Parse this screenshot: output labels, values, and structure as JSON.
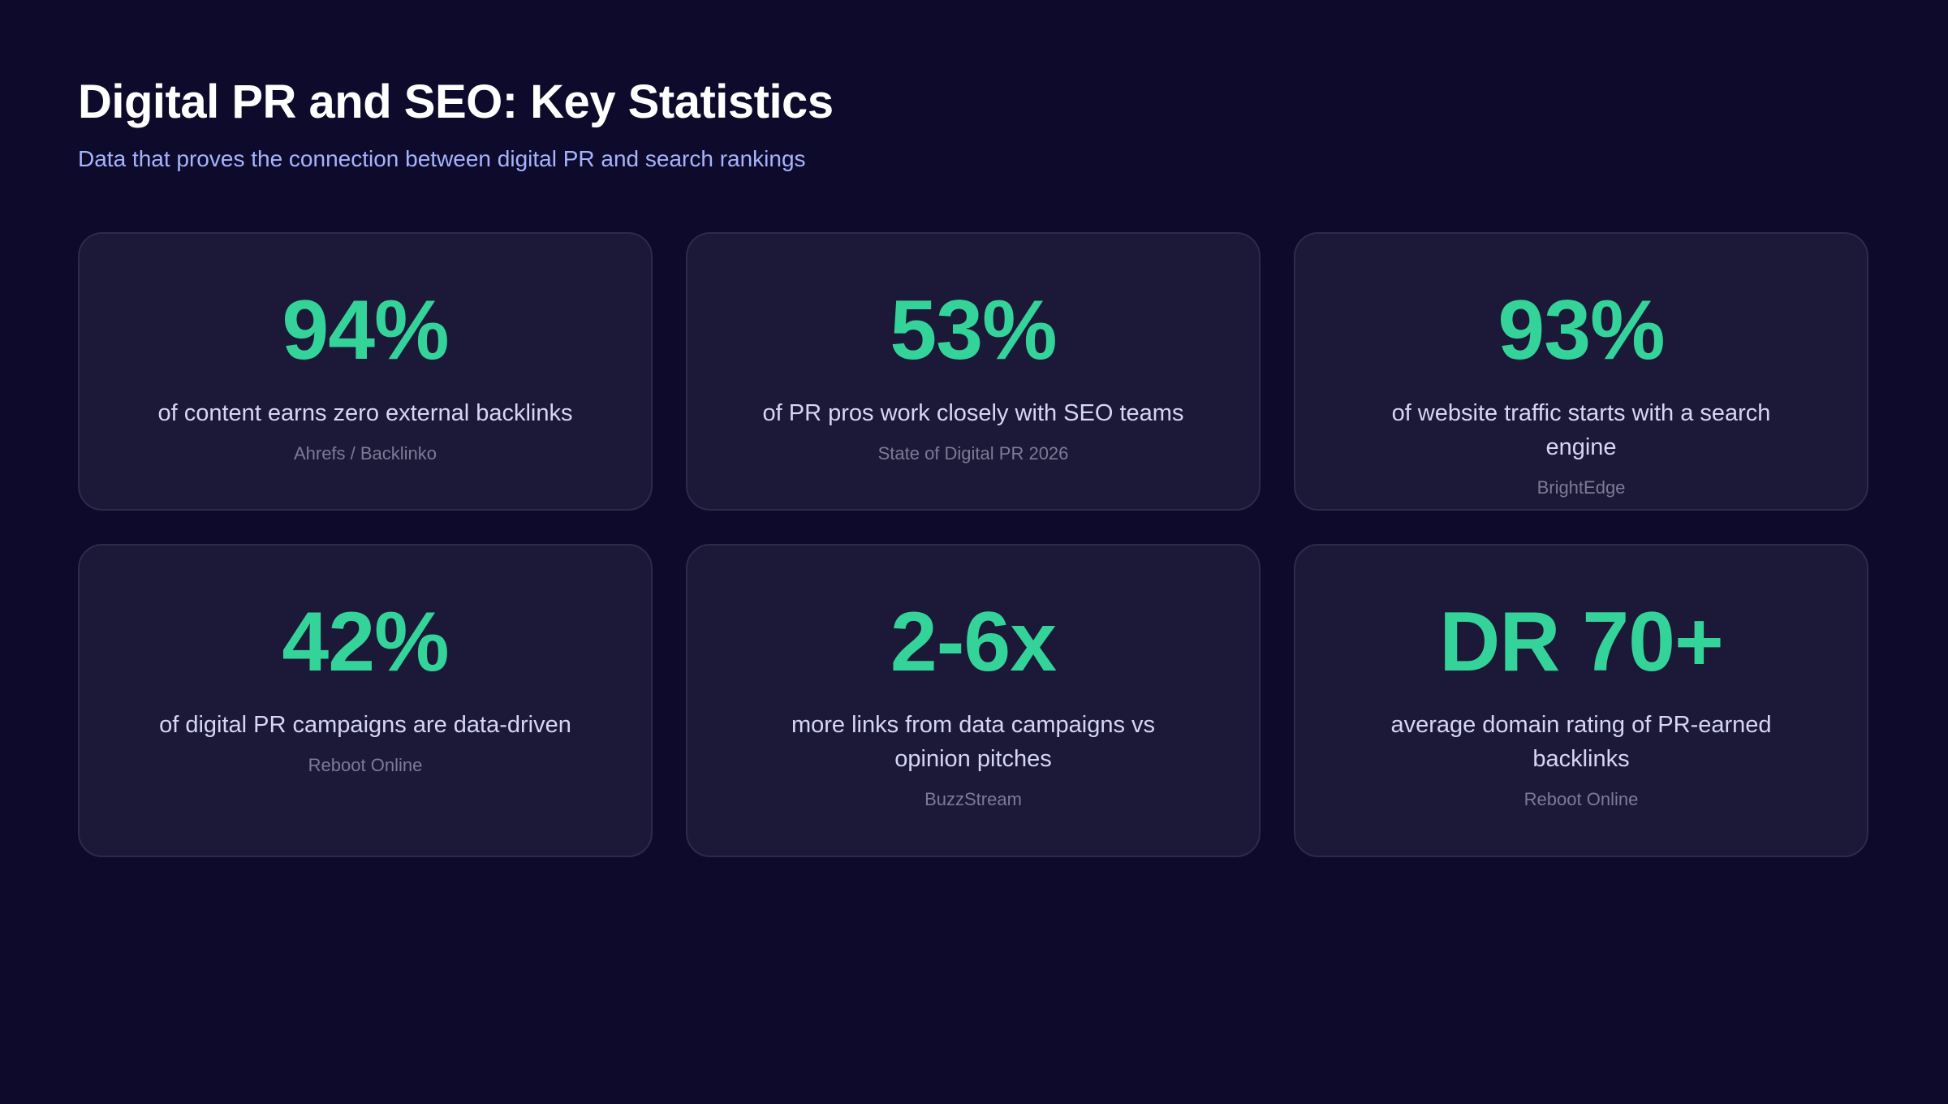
{
  "header": {
    "title": "Digital PR and SEO: Key Statistics",
    "subtitle": "Data that proves the connection between digital PR and search rankings"
  },
  "accent_color": "#34d399",
  "stats": [
    {
      "value": "94%",
      "description": "of content earns zero external backlinks",
      "source": "Ahrefs / Backlinko"
    },
    {
      "value": "53%",
      "description": "of PR pros work closely with SEO teams",
      "source": "State of Digital PR 2026"
    },
    {
      "value": "93%",
      "description": "of website traffic starts with a search engine",
      "source": "BrightEdge"
    },
    {
      "value": "42%",
      "description": "of digital PR campaigns are data-driven",
      "source": "Reboot Online"
    },
    {
      "value": "2-6x",
      "description": "more links from data campaigns vs opinion pitches",
      "source": "BuzzStream"
    },
    {
      "value": "DR 70+",
      "description": "average domain rating of PR-earned backlinks",
      "source": "Reboot Online"
    }
  ]
}
